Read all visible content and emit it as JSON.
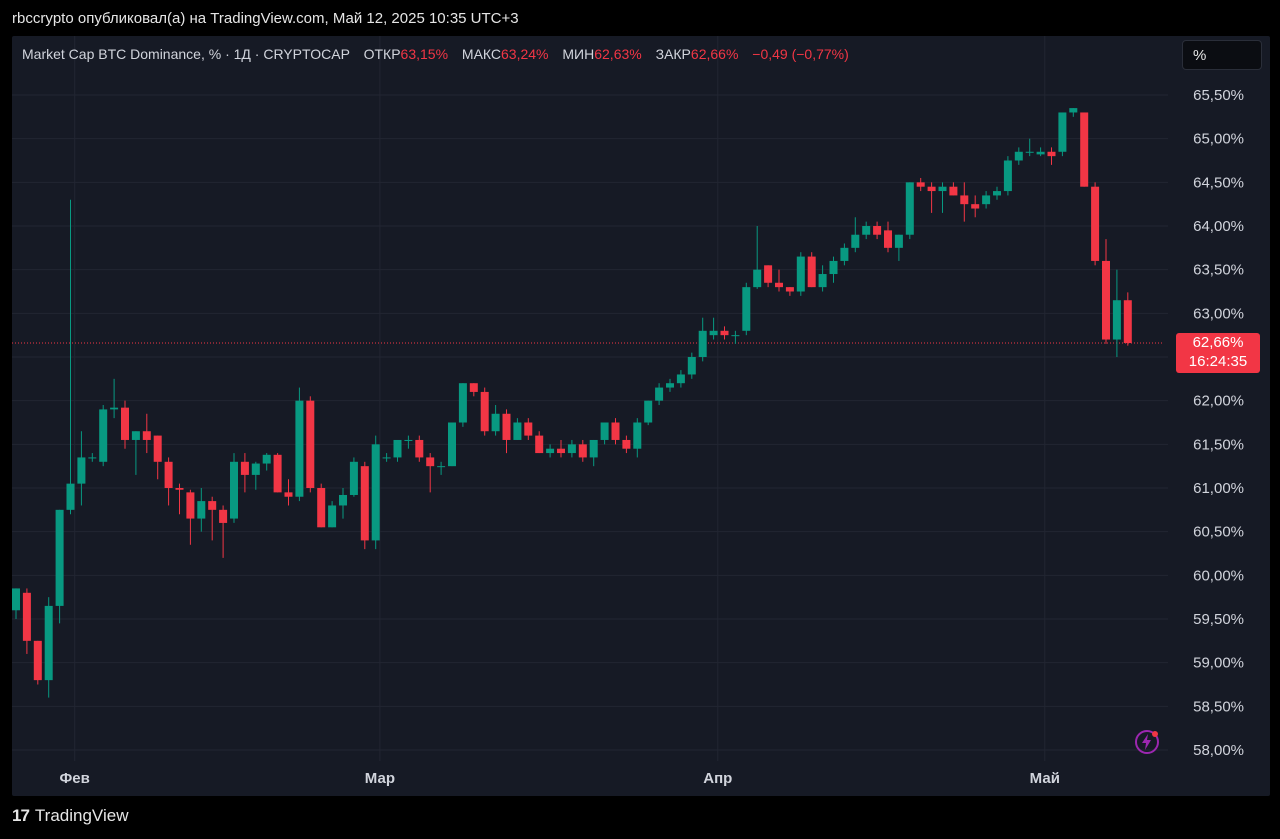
{
  "header": {
    "published_by": "rbccrypto опубликовал(а) на TradingView.com, Май 12, 2025 10:35 UTC+3"
  },
  "legend": {
    "symbol": "Market Cap BTC Dominance, % · 1Д · CRYPTOCAP",
    "open_label": "ОТКР",
    "open_value": "63,15%",
    "high_label": "МАКС",
    "high_value": "63,24%",
    "low_label": "МИН",
    "low_value": "62,63%",
    "close_label": "ЗАКР",
    "close_value": "62,66%",
    "change": "−0,49 (−0,77%)"
  },
  "scale_button": "%",
  "price_tag": {
    "price": "62,66%",
    "countdown": "16:24:35"
  },
  "footer": {
    "brand": "TradingView",
    "brand_mark": "17"
  },
  "colors": {
    "up": "#089981",
    "down": "#f23645",
    "background": "#161a25",
    "grid": "#222632",
    "text": "#d1d4dc"
  },
  "icons": {
    "flash": "flash-lightning-icon"
  },
  "chart_data": {
    "type": "candlestick",
    "title": "Market Cap BTC Dominance, % · 1Д · CRYPTOCAP",
    "ylabel": "%",
    "ylim": [
      58.0,
      65.5
    ],
    "y_ticks": [
      58.0,
      58.5,
      59.0,
      59.5,
      60.0,
      60.5,
      61.0,
      61.5,
      62.0,
      62.5,
      63.0,
      63.5,
      64.0,
      64.5,
      65.0,
      65.5
    ],
    "y_tick_labels": [
      "58,00%",
      "58,50%",
      "59,00%",
      "59,50%",
      "60,00%",
      "60,50%",
      "61,00%",
      "61,50%",
      "62,00%",
      "62,50%",
      "63,00%",
      "63,50%",
      "64,00%",
      "64,50%",
      "65,00%",
      "65,50%"
    ],
    "x_tick_labels": [
      {
        "label": "Фев",
        "index": 3
      },
      {
        "label": "Мар",
        "index": 31
      },
      {
        "label": "Апр",
        "index": 62
      },
      {
        "label": "Май",
        "index": 92
      }
    ],
    "last_price": 62.66,
    "grid": true,
    "candles": [
      {
        "o": 59.6,
        "h": 59.85,
        "l": 59.5,
        "c": 59.85
      },
      {
        "o": 59.8,
        "h": 59.85,
        "l": 59.1,
        "c": 59.25
      },
      {
        "o": 59.25,
        "h": 59.25,
        "l": 58.75,
        "c": 58.8
      },
      {
        "o": 58.8,
        "h": 59.75,
        "l": 58.6,
        "c": 59.65
      },
      {
        "o": 59.65,
        "h": 60.75,
        "l": 59.45,
        "c": 60.75
      },
      {
        "o": 60.75,
        "h": 64.3,
        "l": 60.7,
        "c": 61.05
      },
      {
        "o": 61.05,
        "h": 61.65,
        "l": 60.8,
        "c": 61.35
      },
      {
        "o": 61.35,
        "h": 61.4,
        "l": 61.3,
        "c": 61.35
      },
      {
        "o": 61.3,
        "h": 61.95,
        "l": 61.25,
        "c": 61.9
      },
      {
        "o": 61.9,
        "h": 62.25,
        "l": 61.8,
        "c": 61.92
      },
      {
        "o": 61.92,
        "h": 62.0,
        "l": 61.45,
        "c": 61.55
      },
      {
        "o": 61.55,
        "h": 61.65,
        "l": 61.15,
        "c": 61.65
      },
      {
        "o": 61.65,
        "h": 61.85,
        "l": 61.4,
        "c": 61.55
      },
      {
        "o": 61.6,
        "h": 61.6,
        "l": 61.1,
        "c": 61.3
      },
      {
        "o": 61.3,
        "h": 61.35,
        "l": 60.8,
        "c": 61.0
      },
      {
        "o": 61.0,
        "h": 61.05,
        "l": 60.7,
        "c": 60.98
      },
      {
        "o": 60.95,
        "h": 60.98,
        "l": 60.35,
        "c": 60.65
      },
      {
        "o": 60.65,
        "h": 61.0,
        "l": 60.5,
        "c": 60.85
      },
      {
        "o": 60.85,
        "h": 60.9,
        "l": 60.4,
        "c": 60.75
      },
      {
        "o": 60.75,
        "h": 60.8,
        "l": 60.2,
        "c": 60.6
      },
      {
        "o": 60.65,
        "h": 61.4,
        "l": 60.6,
        "c": 61.3
      },
      {
        "o": 61.3,
        "h": 61.4,
        "l": 60.95,
        "c": 61.15
      },
      {
        "o": 61.15,
        "h": 61.3,
        "l": 60.98,
        "c": 61.28
      },
      {
        "o": 61.28,
        "h": 61.4,
        "l": 61.2,
        "c": 61.38
      },
      {
        "o": 61.38,
        "h": 61.4,
        "l": 60.95,
        "c": 60.95
      },
      {
        "o": 60.95,
        "h": 61.1,
        "l": 60.8,
        "c": 60.9
      },
      {
        "o": 60.9,
        "h": 62.15,
        "l": 60.85,
        "c": 62.0
      },
      {
        "o": 62.0,
        "h": 62.05,
        "l": 60.95,
        "c": 61.0
      },
      {
        "o": 61.0,
        "h": 61.05,
        "l": 60.55,
        "c": 60.55
      },
      {
        "o": 60.55,
        "h": 60.85,
        "l": 60.55,
        "c": 60.8
      },
      {
        "o": 60.8,
        "h": 61.0,
        "l": 60.65,
        "c": 60.92
      },
      {
        "o": 60.92,
        "h": 61.35,
        "l": 60.9,
        "c": 61.3
      },
      {
        "o": 61.25,
        "h": 61.3,
        "l": 60.3,
        "c": 60.4
      },
      {
        "o": 60.4,
        "h": 61.6,
        "l": 60.3,
        "c": 61.5
      },
      {
        "o": 61.35,
        "h": 61.4,
        "l": 61.3,
        "c": 61.35
      },
      {
        "o": 61.35,
        "h": 61.55,
        "l": 61.3,
        "c": 61.55
      },
      {
        "o": 61.55,
        "h": 61.6,
        "l": 61.45,
        "c": 61.55
      },
      {
        "o": 61.55,
        "h": 61.6,
        "l": 61.3,
        "c": 61.35
      },
      {
        "o": 61.35,
        "h": 61.4,
        "l": 60.95,
        "c": 61.25
      },
      {
        "o": 61.25,
        "h": 61.3,
        "l": 61.15,
        "c": 61.25
      },
      {
        "o": 61.25,
        "h": 61.75,
        "l": 61.25,
        "c": 61.75
      },
      {
        "o": 61.75,
        "h": 62.2,
        "l": 61.7,
        "c": 62.2
      },
      {
        "o": 62.2,
        "h": 62.2,
        "l": 62.05,
        "c": 62.1
      },
      {
        "o": 62.1,
        "h": 62.15,
        "l": 61.6,
        "c": 61.65
      },
      {
        "o": 61.65,
        "h": 61.95,
        "l": 61.6,
        "c": 61.85
      },
      {
        "o": 61.85,
        "h": 61.9,
        "l": 61.4,
        "c": 61.55
      },
      {
        "o": 61.55,
        "h": 61.8,
        "l": 61.55,
        "c": 61.75
      },
      {
        "o": 61.75,
        "h": 61.8,
        "l": 61.55,
        "c": 61.6
      },
      {
        "o": 61.6,
        "h": 61.65,
        "l": 61.4,
        "c": 61.4
      },
      {
        "o": 61.4,
        "h": 61.5,
        "l": 61.35,
        "c": 61.45
      },
      {
        "o": 61.45,
        "h": 61.55,
        "l": 61.35,
        "c": 61.4
      },
      {
        "o": 61.4,
        "h": 61.55,
        "l": 61.35,
        "c": 61.5
      },
      {
        "o": 61.5,
        "h": 61.55,
        "l": 61.3,
        "c": 61.35
      },
      {
        "o": 61.35,
        "h": 61.55,
        "l": 61.25,
        "c": 61.55
      },
      {
        "o": 61.55,
        "h": 61.75,
        "l": 61.5,
        "c": 61.75
      },
      {
        "o": 61.75,
        "h": 61.8,
        "l": 61.5,
        "c": 61.55
      },
      {
        "o": 61.55,
        "h": 61.6,
        "l": 61.4,
        "c": 61.45
      },
      {
        "o": 61.45,
        "h": 61.8,
        "l": 61.35,
        "c": 61.75
      },
      {
        "o": 61.75,
        "h": 62.0,
        "l": 61.72,
        "c": 62.0
      },
      {
        "o": 62.0,
        "h": 62.2,
        "l": 61.95,
        "c": 62.15
      },
      {
        "o": 62.15,
        "h": 62.25,
        "l": 62.1,
        "c": 62.2
      },
      {
        "o": 62.2,
        "h": 62.35,
        "l": 62.15,
        "c": 62.3
      },
      {
        "o": 62.3,
        "h": 62.55,
        "l": 62.25,
        "c": 62.5
      },
      {
        "o": 62.5,
        "h": 62.95,
        "l": 62.45,
        "c": 62.8
      },
      {
        "o": 62.75,
        "h": 62.95,
        "l": 62.7,
        "c": 62.8
      },
      {
        "o": 62.8,
        "h": 62.85,
        "l": 62.7,
        "c": 62.75
      },
      {
        "o": 62.75,
        "h": 62.8,
        "l": 62.65,
        "c": 62.75
      },
      {
        "o": 62.8,
        "h": 63.35,
        "l": 62.75,
        "c": 63.3
      },
      {
        "o": 63.3,
        "h": 64.0,
        "l": 63.28,
        "c": 63.5
      },
      {
        "o": 63.55,
        "h": 63.55,
        "l": 63.3,
        "c": 63.35
      },
      {
        "o": 63.35,
        "h": 63.5,
        "l": 63.25,
        "c": 63.3
      },
      {
        "o": 63.3,
        "h": 63.3,
        "l": 63.2,
        "c": 63.25
      },
      {
        "o": 63.25,
        "h": 63.7,
        "l": 63.2,
        "c": 63.65
      },
      {
        "o": 63.65,
        "h": 63.7,
        "l": 63.3,
        "c": 63.3
      },
      {
        "o": 63.3,
        "h": 63.55,
        "l": 63.25,
        "c": 63.45
      },
      {
        "o": 63.45,
        "h": 63.65,
        "l": 63.35,
        "c": 63.6
      },
      {
        "o": 63.6,
        "h": 63.8,
        "l": 63.55,
        "c": 63.75
      },
      {
        "o": 63.75,
        "h": 64.1,
        "l": 63.7,
        "c": 63.9
      },
      {
        "o": 63.9,
        "h": 64.05,
        "l": 63.85,
        "c": 64.0
      },
      {
        "o": 64.0,
        "h": 64.05,
        "l": 63.85,
        "c": 63.9
      },
      {
        "o": 63.95,
        "h": 64.05,
        "l": 63.7,
        "c": 63.75
      },
      {
        "o": 63.75,
        "h": 63.9,
        "l": 63.6,
        "c": 63.9
      },
      {
        "o": 63.9,
        "h": 64.5,
        "l": 63.85,
        "c": 64.5
      },
      {
        "o": 64.5,
        "h": 64.55,
        "l": 64.4,
        "c": 64.45
      },
      {
        "o": 64.45,
        "h": 64.5,
        "l": 64.15,
        "c": 64.4
      },
      {
        "o": 64.4,
        "h": 64.5,
        "l": 64.15,
        "c": 64.45
      },
      {
        "o": 64.45,
        "h": 64.5,
        "l": 64.35,
        "c": 64.35
      },
      {
        "o": 64.35,
        "h": 64.5,
        "l": 64.05,
        "c": 64.25
      },
      {
        "o": 64.25,
        "h": 64.35,
        "l": 64.1,
        "c": 64.2
      },
      {
        "o": 64.25,
        "h": 64.4,
        "l": 64.2,
        "c": 64.35
      },
      {
        "o": 64.35,
        "h": 64.45,
        "l": 64.3,
        "c": 64.4
      },
      {
        "o": 64.4,
        "h": 64.8,
        "l": 64.35,
        "c": 64.75
      },
      {
        "o": 64.75,
        "h": 64.9,
        "l": 64.7,
        "c": 64.85
      },
      {
        "o": 64.85,
        "h": 65.0,
        "l": 64.8,
        "c": 64.85
      },
      {
        "o": 64.82,
        "h": 64.9,
        "l": 64.8,
        "c": 64.85
      },
      {
        "o": 64.85,
        "h": 64.9,
        "l": 64.7,
        "c": 64.8
      },
      {
        "o": 64.85,
        "h": 65.3,
        "l": 64.8,
        "c": 65.3
      },
      {
        "o": 65.3,
        "h": 65.35,
        "l": 65.25,
        "c": 65.35
      },
      {
        "o": 65.3,
        "h": 65.3,
        "l": 64.45,
        "c": 64.45
      },
      {
        "o": 64.45,
        "h": 64.5,
        "l": 63.55,
        "c": 63.6
      },
      {
        "o": 63.6,
        "h": 63.85,
        "l": 62.65,
        "c": 62.7
      },
      {
        "o": 62.7,
        "h": 63.5,
        "l": 62.5,
        "c": 63.15
      },
      {
        "o": 63.15,
        "h": 63.24,
        "l": 62.63,
        "c": 62.66
      }
    ]
  }
}
